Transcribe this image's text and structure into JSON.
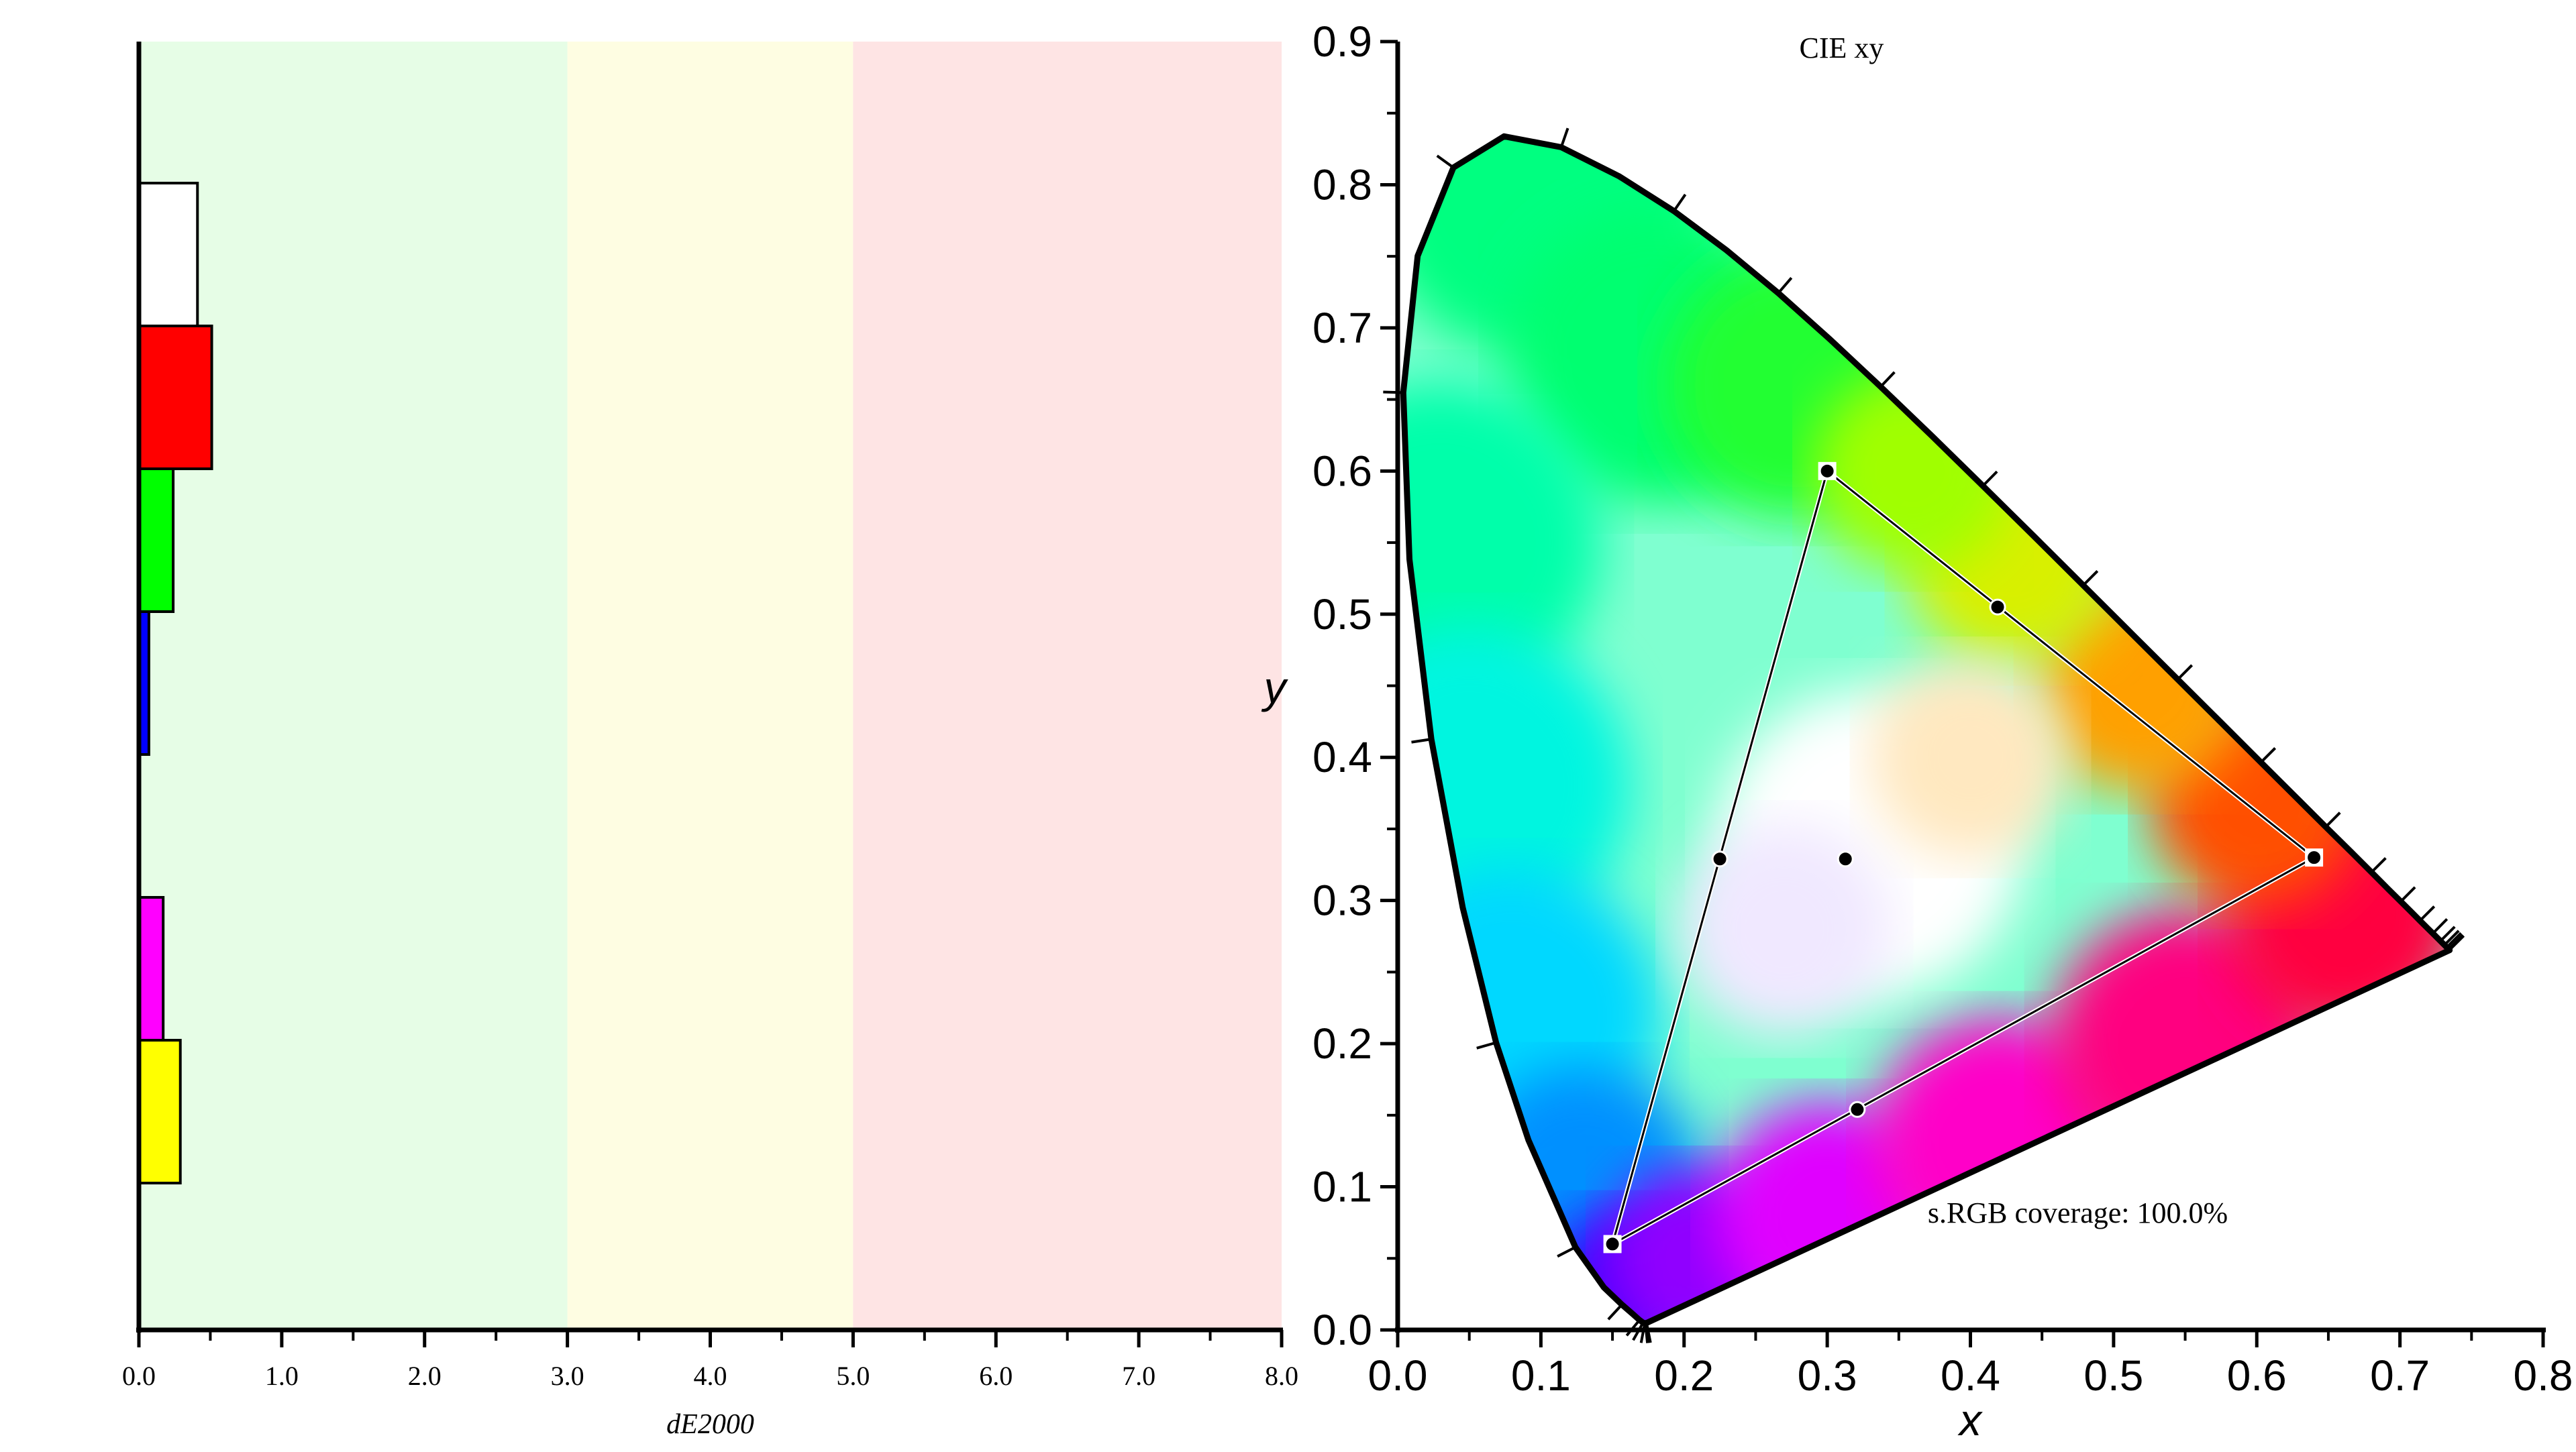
{
  "chart_data": [
    {
      "type": "bar",
      "orientation": "horizontal",
      "xlabel": "dE2000",
      "xlim": [
        0,
        8
      ],
      "x_ticks": [
        "0.0",
        "1.0",
        "2.0",
        "3.0",
        "4.0",
        "5.0",
        "6.0",
        "7.0",
        "8.0"
      ],
      "bands": [
        {
          "from": 0,
          "to": 3,
          "color": "#e6fde6"
        },
        {
          "from": 3,
          "to": 5,
          "color": "#fefde2"
        },
        {
          "from": 5,
          "to": 8,
          "color": "#fee4e4"
        }
      ],
      "bars": [
        {
          "color": "#ffffff",
          "value": 0.41
        },
        {
          "color": "#ff0000",
          "value": 0.51
        },
        {
          "color": "#00ff00",
          "value": 0.24
        },
        {
          "color": "#0000ff",
          "value": 0.07
        },
        {
          "color": "#000000",
          "value": 0.0
        },
        {
          "color": "#ff00ff",
          "value": 0.17
        },
        {
          "color": "#ffff00",
          "value": 0.29
        }
      ]
    },
    {
      "type": "scatter",
      "title": "CIE xy",
      "xlabel": "x",
      "ylabel": "y",
      "xlim": [
        0,
        0.8
      ],
      "ylim": [
        0,
        0.9
      ],
      "x_ticks": [
        "0.0",
        "0.1",
        "0.2",
        "0.3",
        "0.4",
        "0.5",
        "0.6",
        "0.7",
        "0.8"
      ],
      "y_ticks": [
        "0.0",
        "0.1",
        "0.2",
        "0.3",
        "0.4",
        "0.5",
        "0.6",
        "0.7",
        "0.8",
        "0.9"
      ],
      "annotation": "s.RGB coverage: 100.0%",
      "gamut_triangle": [
        {
          "name": "red",
          "x": 0.64,
          "y": 0.33
        },
        {
          "name": "green",
          "x": 0.3,
          "y": 0.6
        },
        {
          "name": "blue",
          "x": 0.15,
          "y": 0.06
        }
      ],
      "measured_points": [
        {
          "name": "red",
          "x": 0.64,
          "y": 0.33
        },
        {
          "name": "green",
          "x": 0.3,
          "y": 0.6
        },
        {
          "name": "blue",
          "x": 0.15,
          "y": 0.06
        },
        {
          "name": "white",
          "x": 0.3127,
          "y": 0.329
        },
        {
          "name": "yellow",
          "x": 0.419,
          "y": 0.505
        },
        {
          "name": "cyan",
          "x": 0.225,
          "y": 0.329
        },
        {
          "name": "magenta",
          "x": 0.321,
          "y": 0.154
        }
      ],
      "spectral_locus": [
        [
          0.1741,
          0.005
        ],
        [
          0.1738,
          0.0049
        ],
        [
          0.1736,
          0.0049
        ],
        [
          0.173,
          0.0048
        ],
        [
          0.1726,
          0.0048
        ],
        [
          0.1714,
          0.0051
        ],
        [
          0.1689,
          0.0069
        ],
        [
          0.1644,
          0.0109
        ],
        [
          0.1566,
          0.0177
        ],
        [
          0.144,
          0.0297
        ],
        [
          0.1241,
          0.0578
        ],
        [
          0.0913,
          0.1327
        ],
        [
          0.0687,
          0.2007
        ],
        [
          0.0454,
          0.295
        ],
        [
          0.0235,
          0.4127
        ],
        [
          0.0082,
          0.5384
        ],
        [
          0.0039,
          0.6548
        ],
        [
          0.0139,
          0.7502
        ],
        [
          0.0389,
          0.812
        ],
        [
          0.0743,
          0.8338
        ],
        [
          0.1142,
          0.8262
        ],
        [
          0.1547,
          0.8059
        ],
        [
          0.1929,
          0.7816
        ],
        [
          0.2296,
          0.7543
        ],
        [
          0.2658,
          0.7243
        ],
        [
          0.3016,
          0.6923
        ],
        [
          0.3373,
          0.6589
        ],
        [
          0.3731,
          0.6245
        ],
        [
          0.4087,
          0.5896
        ],
        [
          0.4441,
          0.5547
        ],
        [
          0.4788,
          0.5202
        ],
        [
          0.5125,
          0.4866
        ],
        [
          0.5448,
          0.4544
        ],
        [
          0.5752,
          0.4242
        ],
        [
          0.6029,
          0.3965
        ],
        [
          0.627,
          0.3725
        ],
        [
          0.6482,
          0.3514
        ],
        [
          0.6658,
          0.334
        ],
        [
          0.6801,
          0.3197
        ],
        [
          0.6915,
          0.3083
        ],
        [
          0.7006,
          0.2993
        ],
        [
          0.7079,
          0.292
        ],
        [
          0.714,
          0.2859
        ],
        [
          0.719,
          0.2809
        ],
        [
          0.723,
          0.277
        ],
        [
          0.726,
          0.274
        ],
        [
          0.7283,
          0.2717
        ],
        [
          0.73,
          0.27
        ],
        [
          0.7311,
          0.2689
        ],
        [
          0.732,
          0.268
        ],
        [
          0.7327,
          0.2673
        ],
        [
          0.7334,
          0.2666
        ],
        [
          0.734,
          0.266
        ],
        [
          0.7344,
          0.2656
        ],
        [
          0.7346,
          0.2654
        ],
        [
          0.7347,
          0.2653
        ]
      ]
    }
  ]
}
